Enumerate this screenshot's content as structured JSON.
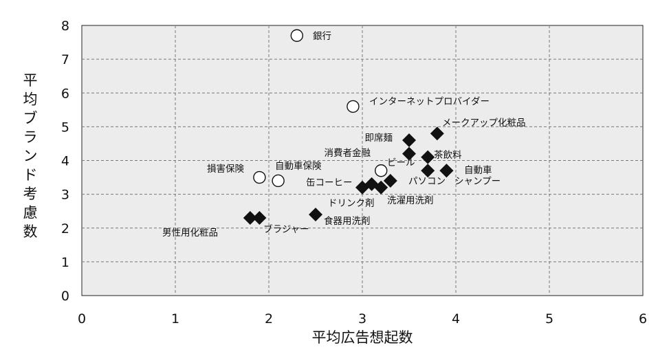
{
  "chart_data": {
    "type": "scatter",
    "xlabel": "平均広告想起数",
    "ylabel": "平均ブランド考慮数",
    "xlim": [
      0,
      6
    ],
    "ylim": [
      0,
      8
    ],
    "x_ticks": [
      "0",
      "1",
      "2",
      "3",
      "4",
      "5",
      "6"
    ],
    "y_ticks": [
      "0",
      "1",
      "2",
      "3",
      "4",
      "5",
      "6",
      "7",
      "8"
    ],
    "grid": true,
    "marker_styles": [
      "open-circle",
      "filled-diamond"
    ],
    "points": [
      {
        "label": "銀行",
        "x": 2.3,
        "y": 7.7,
        "marker": "open-circle"
      },
      {
        "label": "インターネットプロバイダー",
        "x": 2.9,
        "y": 5.6,
        "marker": "open-circle"
      },
      {
        "label": "自動車保険",
        "x": 2.1,
        "y": 3.4,
        "marker": "open-circle"
      },
      {
        "label": "損害保険",
        "x": 1.9,
        "y": 3.5,
        "marker": "open-circle"
      },
      {
        "label": "ビール",
        "x": 3.2,
        "y": 3.7,
        "marker": "open-circle"
      },
      {
        "label": "メークアップ化粧品",
        "x": 3.8,
        "y": 4.8,
        "marker": "filled-diamond"
      },
      {
        "label": "即席麺",
        "x": 3.5,
        "y": 4.6,
        "marker": "filled-diamond"
      },
      {
        "label": "消費者金融",
        "x": 3.5,
        "y": 4.2,
        "marker": "filled-diamond"
      },
      {
        "label": "茶飲料",
        "x": 3.7,
        "y": 4.1,
        "marker": "filled-diamond"
      },
      {
        "label": "自動車",
        "x": 3.9,
        "y": 3.7,
        "marker": "filled-diamond"
      },
      {
        "label": "パソコン",
        "x": 3.7,
        "y": 3.7,
        "marker": "filled-diamond"
      },
      {
        "label": "シャンプー",
        "x": 3.9,
        "y": 3.7,
        "marker": "filled-diamond"
      },
      {
        "label": "缶コーヒー",
        "x": 3.0,
        "y": 3.2,
        "marker": "filled-diamond"
      },
      {
        "label": "ドリンク剤",
        "x": 3.1,
        "y": 3.3,
        "marker": "filled-diamond"
      },
      {
        "label": "洗濯用洗剤",
        "x": 3.2,
        "y": 3.2,
        "marker": "filled-diamond"
      },
      {
        "label": "",
        "x": 3.3,
        "y": 3.4,
        "marker": "filled-diamond"
      },
      {
        "label": "食器用洗剤",
        "x": 2.5,
        "y": 2.4,
        "marker": "filled-diamond"
      },
      {
        "label": "男性用化粧品",
        "x": 1.8,
        "y": 2.3,
        "marker": "filled-diamond"
      },
      {
        "label": "ブラジャー",
        "x": 1.9,
        "y": 2.3,
        "marker": "filled-diamond"
      }
    ]
  }
}
